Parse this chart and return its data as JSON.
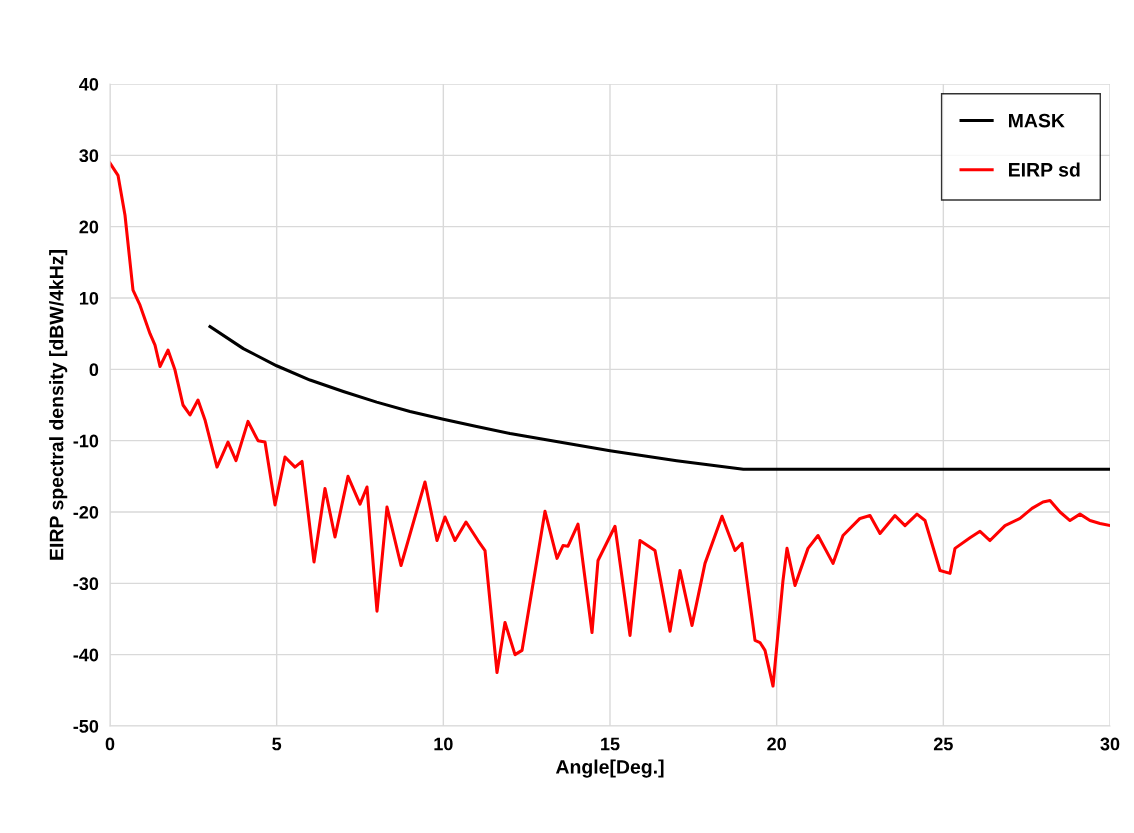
{
  "chart_data": {
    "type": "line",
    "xlabel": "Angle[Deg.]",
    "ylabel": "EIRP spectral density [dBW/4kHz]",
    "xlim": [
      0,
      30
    ],
    "xticks": [
      0,
      5,
      10,
      15,
      20,
      25,
      30
    ],
    "ylim": [
      -50,
      40
    ],
    "yticks": [
      -50,
      -40,
      -30,
      -20,
      -10,
      0,
      10,
      20,
      30,
      40
    ],
    "grid": true,
    "legend": "top right",
    "marker": "none",
    "line_style": "solid",
    "series": [
      {
        "name": "MASK",
        "color": "#000000",
        "x": [
          3,
          4,
          5,
          6,
          7,
          8,
          9,
          10,
          11,
          12,
          13,
          14,
          15,
          16,
          17,
          18,
          19,
          30
        ],
        "values": [
          6.0,
          2.9,
          0.5,
          -1.5,
          -3.1,
          -4.6,
          -5.9,
          -7.0,
          -8.0,
          -9.0,
          -9.8,
          -10.6,
          -11.4,
          -12.1,
          -12.8,
          -13.4,
          -14,
          -14
        ]
      },
      {
        "name": "EIRP sd",
        "color": "#ff0000",
        "x": [
          0,
          0.24,
          0.45,
          0.69,
          0.9,
          1.2,
          1.35,
          1.5,
          1.74,
          1.95,
          2.19,
          2.4,
          2.64,
          2.85,
          3.21,
          3.54,
          3.78,
          4.14,
          4.44,
          4.65,
          4.95,
          5.25,
          5.55,
          5.76,
          6.12,
          6.45,
          6.75,
          7.14,
          7.5,
          7.71,
          8.01,
          8.31,
          8.73,
          9.45,
          9.81,
          10.05,
          10.35,
          10.68,
          11.04,
          11.25,
          11.61,
          11.85,
          12.15,
          12.36,
          13.05,
          13.41,
          13.59,
          13.74,
          14.04,
          14.46,
          14.64,
          15.15,
          15.6,
          15.9,
          16.35,
          16.8,
          17.1,
          17.46,
          17.85,
          18.36,
          18.75,
          18.96,
          19.35,
          19.5,
          19.65,
          19.89,
          20.19,
          20.31,
          20.55,
          20.94,
          21.24,
          21.69,
          21.99,
          22.5,
          22.8,
          23.1,
          23.55,
          23.85,
          24.21,
          24.45,
          24.9,
          25.2,
          25.35,
          25.8,
          26.1,
          26.4,
          26.85,
          27.3,
          27.66,
          27.99,
          28.2,
          28.5,
          28.8,
          29.1,
          29.4,
          29.7,
          30
        ],
        "values": [
          28.9,
          27.2,
          21.6,
          11.1,
          9.0,
          5.0,
          3.4,
          0.4,
          2.7,
          -0.1,
          -5,
          -6.4,
          -4.3,
          -7.1,
          -13.7,
          -10.2,
          -12.8,
          -7.3,
          -10,
          -10.2,
          -19,
          -12.3,
          -13.7,
          -12.9,
          -27,
          -16.7,
          -23.5,
          -15,
          -18.9,
          -16.5,
          -33.9,
          -19.3,
          -27.5,
          -15.8,
          -24,
          -20.7,
          -24,
          -21.4,
          -24,
          -25.4,
          -42.5,
          -35.5,
          -40,
          -39.4,
          -19.9,
          -26.5,
          -24.7,
          -24.8,
          -21.7,
          -36.9,
          -26.8,
          -22,
          -37.3,
          -24,
          -25.4,
          -36.7,
          -28.2,
          -35.9,
          -27.2,
          -20.6,
          -25.4,
          -24.4,
          -38,
          -38.3,
          -39.4,
          -44.4,
          -29.6,
          -25.1,
          -30.3,
          -25.1,
          -23.3,
          -27.2,
          -23.3,
          -20.9,
          -20.5,
          -23,
          -20.5,
          -21.9,
          -20.3,
          -21.2,
          -28.2,
          -28.6,
          -25.1,
          -23.6,
          -22.7,
          -24,
          -21.9,
          -20.9,
          -19.5,
          -18.6,
          -18.4,
          -20,
          -21.2,
          -20.3,
          -21.2,
          -21.6,
          -21.9
        ]
      }
    ]
  }
}
